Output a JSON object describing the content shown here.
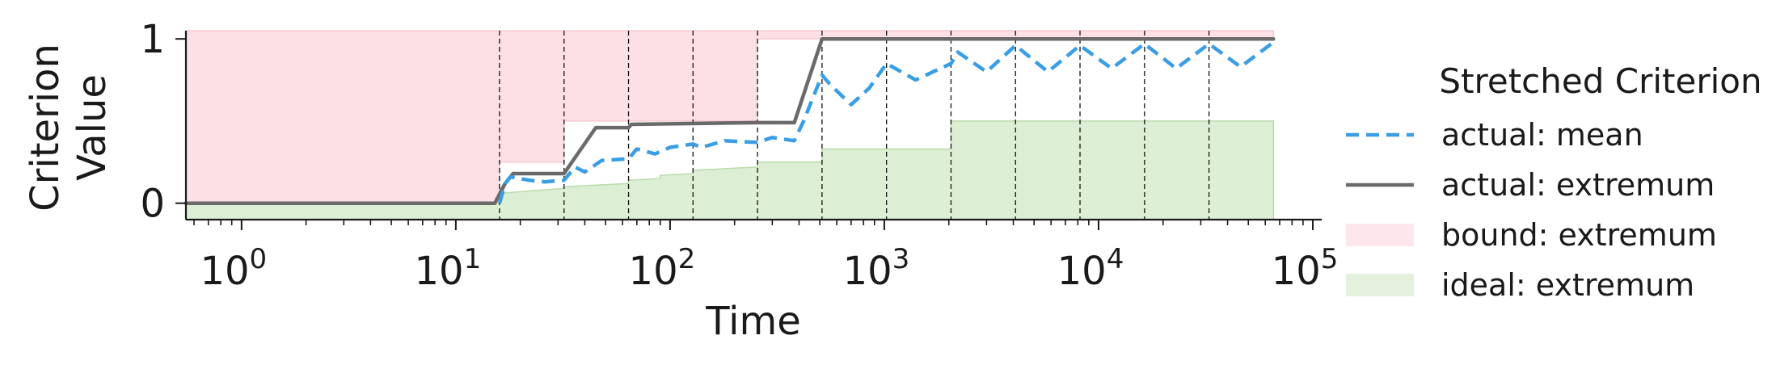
{
  "chart_data": {
    "type": "line",
    "xscale": "log",
    "xlim": [
      0.55,
      110000
    ],
    "ylim": [
      -0.1,
      1.05
    ],
    "xlabel": "Time",
    "ylabel_lines": [
      "Criterion",
      "Value"
    ],
    "x_ticks": [
      {
        "value": 1,
        "base": "10",
        "exp": "0"
      },
      {
        "value": 10,
        "base": "10",
        "exp": "1"
      },
      {
        "value": 100,
        "base": "10",
        "exp": "2"
      },
      {
        "value": 1000,
        "base": "10",
        "exp": "3"
      },
      {
        "value": 10000,
        "base": "10",
        "exp": "4"
      },
      {
        "value": 100000,
        "base": "10",
        "exp": "5"
      }
    ],
    "y_ticks": [
      {
        "value": 0,
        "label": "0"
      },
      {
        "value": 1,
        "label": "1"
      }
    ],
    "vlines": [
      16,
      32,
      64,
      128,
      256,
      512,
      1024,
      2048,
      4096,
      8192,
      16384,
      32768
    ],
    "bound_region": [
      [
        0.55,
        0.0,
        1.05
      ],
      [
        16,
        0.0,
        1.05
      ],
      [
        16,
        0.25,
        1.05
      ],
      [
        32,
        0.25,
        1.05
      ],
      [
        32,
        0.5,
        1.05
      ],
      [
        256,
        0.5,
        1.05
      ],
      [
        256,
        1.0,
        1.05
      ],
      [
        65536,
        1.0,
        1.05
      ]
    ],
    "ideal_steps": [
      [
        0.55,
        0.0
      ],
      [
        16,
        0.0
      ],
      [
        16,
        0.06
      ],
      [
        20,
        0.07
      ],
      [
        25,
        0.08
      ],
      [
        32,
        0.09
      ],
      [
        32,
        0.1
      ],
      [
        45,
        0.11
      ],
      [
        64,
        0.12
      ],
      [
        64,
        0.14
      ],
      [
        90,
        0.15
      ],
      [
        90,
        0.17
      ],
      [
        128,
        0.18
      ],
      [
        128,
        0.2
      ],
      [
        180,
        0.21
      ],
      [
        256,
        0.22
      ],
      [
        256,
        0.25
      ],
      [
        512,
        0.25
      ],
      [
        512,
        0.33
      ],
      [
        2048,
        0.33
      ],
      [
        2048,
        0.5
      ],
      [
        65536,
        0.5
      ]
    ],
    "series": [
      {
        "name": "actual: mean",
        "style": "dashed",
        "color": "#3a9ee4",
        "points": [
          [
            16,
            0.0
          ],
          [
            17,
            0.12
          ],
          [
            18,
            0.16
          ],
          [
            22,
            0.14
          ],
          [
            26,
            0.13
          ],
          [
            32,
            0.14
          ],
          [
            36,
            0.22
          ],
          [
            40,
            0.19
          ],
          [
            48,
            0.26
          ],
          [
            64,
            0.27
          ],
          [
            70,
            0.33
          ],
          [
            85,
            0.3
          ],
          [
            100,
            0.34
          ],
          [
            128,
            0.36
          ],
          [
            140,
            0.34
          ],
          [
            180,
            0.38
          ],
          [
            256,
            0.37
          ],
          [
            300,
            0.4
          ],
          [
            380,
            0.38
          ],
          [
            420,
            0.5
          ],
          [
            512,
            0.78
          ],
          [
            560,
            0.72
          ],
          [
            700,
            0.6
          ],
          [
            850,
            0.7
          ],
          [
            1024,
            0.85
          ],
          [
            1400,
            0.75
          ],
          [
            2048,
            0.85
          ],
          [
            2200,
            0.92
          ],
          [
            3000,
            0.8
          ],
          [
            4096,
            0.96
          ],
          [
            5800,
            0.8
          ],
          [
            8192,
            0.96
          ],
          [
            11500,
            0.82
          ],
          [
            16384,
            0.97
          ],
          [
            23000,
            0.82
          ],
          [
            32768,
            0.97
          ],
          [
            46000,
            0.83
          ],
          [
            65536,
            0.98
          ]
        ]
      },
      {
        "name": "actual: extremum",
        "style": "solid",
        "color": "#6a6a6a",
        "points": [
          [
            0.55,
            0.0
          ],
          [
            15.2,
            0.0
          ],
          [
            17,
            0.12
          ],
          [
            18.5,
            0.18
          ],
          [
            32,
            0.18
          ],
          [
            45,
            0.46
          ],
          [
            64,
            0.46
          ],
          [
            66,
            0.48
          ],
          [
            256,
            0.49
          ],
          [
            380,
            0.49
          ],
          [
            512,
            1.0
          ],
          [
            65536,
            1.0
          ]
        ]
      }
    ],
    "legend": {
      "title": "Stretched Criterion",
      "position": "right",
      "entries": [
        {
          "label": "actual: mean",
          "kind": "dashed-line",
          "color": "#3a9ee4"
        },
        {
          "label": "actual: extremum",
          "kind": "solid-line",
          "color": "#6a6a6a"
        },
        {
          "label": "bound: extremum",
          "kind": "patch",
          "color": "#fde7ec"
        },
        {
          "label": "ideal: extremum",
          "kind": "patch",
          "color": "#e3f1dd"
        }
      ]
    },
    "colors": {
      "bound_fill": "#fde0e6",
      "bound_edge": "#f7c8d2",
      "ideal_fill": "#dcefd5",
      "ideal_edge": "#b9dca9"
    }
  }
}
